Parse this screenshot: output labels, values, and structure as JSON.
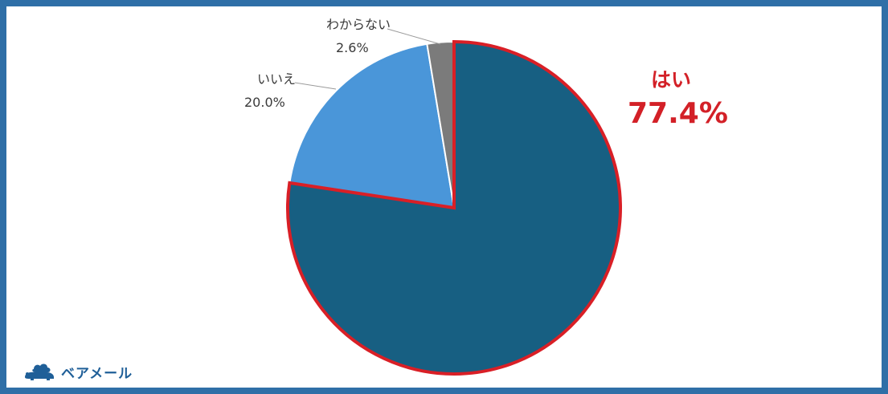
{
  "chart_data": {
    "type": "pie",
    "title": "",
    "slices": [
      {
        "label": "はい",
        "value": 77.4,
        "value_label": "77.4%",
        "color": "#175f82",
        "highlight": "#d91f26"
      },
      {
        "label": "いいえ",
        "value": 20.0,
        "value_label": "20.0%",
        "color": "#4a96d9"
      },
      {
        "label": "わからない",
        "value": 2.6,
        "value_label": "2.6%",
        "color": "#7b7b7b"
      }
    ],
    "start_angle_deg": 0,
    "direction": "clockwise"
  },
  "brand": {
    "name": "ベアメール",
    "accent": "#1f5f98"
  },
  "frame_color": "#2f6fa7"
}
